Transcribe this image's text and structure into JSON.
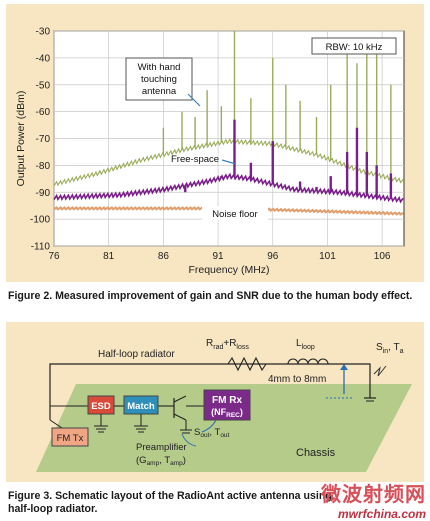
{
  "figure2": {
    "caption": "Figure 2. Measured improvement of gain and SNR due to the human body effect.",
    "rbw": "RBW: 10 kHz",
    "annotations": {
      "hand": [
        "With hand",
        "touching",
        "antenna"
      ],
      "free": "Free-space",
      "noise": "Noise floor"
    },
    "colors": {
      "hand": "#9aac5a",
      "free": "#7a1f8a",
      "noise": "#e0a070"
    }
  },
  "chart_data": {
    "type": "line",
    "title": "",
    "xlabel": "Frequency (MHz)",
    "ylabel": "Output Power (dBm)",
    "xlim": [
      76,
      108
    ],
    "ylim": [
      -110,
      -30
    ],
    "xticks": [
      76,
      81,
      86,
      91,
      96,
      101,
      106
    ],
    "yticks": [
      -30,
      -40,
      -50,
      -60,
      -70,
      -80,
      -90,
      -100,
      -110
    ],
    "grid": true,
    "series": [
      {
        "name": "With hand touching antenna",
        "baseline": [
          [
            76,
            -87
          ],
          [
            80,
            -83
          ],
          [
            84,
            -78
          ],
          [
            88,
            -74
          ],
          [
            92,
            -71
          ],
          [
            96,
            -72
          ],
          [
            100,
            -76
          ],
          [
            104,
            -82
          ],
          [
            108,
            -86
          ]
        ],
        "peaks": [
          [
            80.2,
            -82
          ],
          [
            86.0,
            -66
          ],
          [
            87.7,
            -60
          ],
          [
            88.9,
            -62
          ],
          [
            90.0,
            -52
          ],
          [
            91.3,
            -58
          ],
          [
            92.5,
            -30
          ],
          [
            94.0,
            -55
          ],
          [
            96.0,
            -40
          ],
          [
            97.2,
            -50
          ],
          [
            98.5,
            -56
          ],
          [
            100.0,
            -62
          ],
          [
            101.3,
            -50
          ],
          [
            102.8,
            -36
          ],
          [
            103.7,
            -42
          ],
          [
            104.6,
            -36
          ],
          [
            105.5,
            -38
          ],
          [
            106.8,
            -50
          ]
        ]
      },
      {
        "name": "Free-space",
        "baseline": [
          [
            76,
            -92
          ],
          [
            82,
            -91
          ],
          [
            86,
            -89
          ],
          [
            90,
            -86
          ],
          [
            92,
            -84
          ],
          [
            94,
            -85
          ],
          [
            98,
            -89
          ],
          [
            102,
            -90
          ],
          [
            108,
            -93
          ]
        ],
        "peaks": [
          [
            88.0,
            -90
          ],
          [
            91.3,
            -84
          ],
          [
            92.5,
            -63
          ],
          [
            94.0,
            -79
          ],
          [
            96.0,
            -71
          ],
          [
            98.5,
            -86
          ],
          [
            100.0,
            -88
          ],
          [
            101.3,
            -84
          ],
          [
            102.8,
            -75
          ],
          [
            103.7,
            -66
          ],
          [
            104.6,
            -75
          ],
          [
            105.5,
            -80
          ],
          [
            106.8,
            -83
          ]
        ]
      },
      {
        "name": "Noise floor",
        "baseline": [
          [
            76,
            -96
          ],
          [
            92,
            -96
          ],
          [
            108,
            -98
          ]
        ],
        "peaks": []
      }
    ]
  },
  "figure3": {
    "caption_line1": "Figure 3. Schematic layout of the RadioAnt active antenna using",
    "caption_line2": "half-loop radiator.",
    "labels": {
      "half_loop": "Half-loop radiator",
      "r_rad": "R",
      "r_rad_sub": "rad",
      "r_plus": "+R",
      "r_loss_sub": "loss",
      "l_loop": "L",
      "l_loop_sub": "loop",
      "s_in": "S",
      "s_in_sub": "in",
      "t_a": ", T",
      "t_a_sub": "a",
      "gap": "4mm to 8mm",
      "esd": "ESD",
      "match": "Match",
      "fm_rx": "FM Rx",
      "nf_rec": "(NF",
      "nf_rec_sub": "REC",
      "nf_rec_end": ")",
      "fm_tx": "FM Tx",
      "preamp": "Preamplifier",
      "g_amp": "(G",
      "g_amp_sub": "amp",
      "t_amp": ", T",
      "t_amp_sub": "amp",
      "t_amp_end": ")",
      "s_out": "S",
      "s_out_sub": "out",
      "t_out": ", T",
      "t_out_sub": "out",
      "chassis": "Chassis"
    },
    "colors": {
      "esd": "#d94a3a",
      "match": "#2f8fb8",
      "fm_rx": "#7b2a8a",
      "fm_tx": "#f0a585",
      "chassis": "#b4cb8a"
    }
  },
  "watermark": {
    "text": "微波射频网",
    "url": "mwrfchina.com"
  }
}
